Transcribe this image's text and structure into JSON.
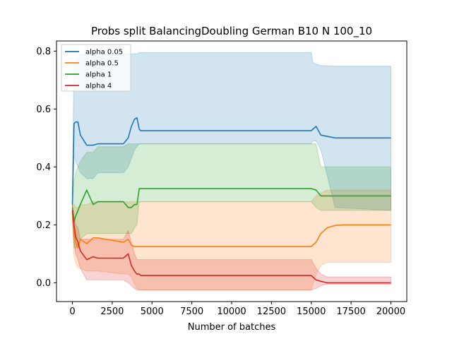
{
  "chart_data": {
    "type": "line",
    "title": "Probs split BalancingDoubling German B10 N 100_10",
    "xlabel": "Number of batches",
    "ylabel": "",
    "xlim": [
      -1000,
      21000
    ],
    "ylim": [
      -0.065,
      0.835
    ],
    "xticks": [
      0,
      2500,
      5000,
      7500,
      10000,
      12500,
      15000,
      17500,
      20000
    ],
    "xtick_labels": [
      "0",
      "2500",
      "5000",
      "7500",
      "10000",
      "12500",
      "15000",
      "17500",
      "20000"
    ],
    "yticks": [
      0.0,
      0.2,
      0.4,
      0.6,
      0.8
    ],
    "ytick_labels": [
      "0.0",
      "0.2",
      "0.4",
      "0.6",
      "0.8"
    ],
    "grid": false,
    "legend_position": "top-left",
    "series": [
      {
        "name": "alpha 0.05",
        "color": "#1f77b4",
        "x": [
          0,
          100,
          200,
          350,
          500,
          900,
          1300,
          1600,
          3200,
          3500,
          3700,
          3900,
          4050,
          4200,
          4300,
          15000,
          15100,
          15300,
          15600,
          16500,
          20000
        ],
        "y": [
          0.27,
          0.55,
          0.555,
          0.555,
          0.51,
          0.475,
          0.475,
          0.48,
          0.48,
          0.5,
          0.54,
          0.565,
          0.57,
          0.53,
          0.525,
          0.525,
          0.53,
          0.54,
          0.51,
          0.5,
          0.5
        ],
        "band_upper": [
          0.3,
          0.76,
          0.76,
          0.78,
          0.79,
          0.79,
          0.79,
          0.79,
          0.79,
          0.79,
          0.79,
          0.79,
          0.79,
          0.795,
          0.795,
          0.795,
          0.76,
          0.755,
          0.75,
          0.748,
          0.748
        ],
        "band_lower": [
          0.25,
          0.44,
          0.42,
          0.4,
          0.38,
          0.36,
          0.36,
          0.38,
          0.38,
          0.4,
          0.43,
          0.46,
          0.47,
          0.48,
          0.48,
          0.48,
          0.49,
          0.49,
          0.46,
          0.26,
          0.25
        ]
      },
      {
        "name": "alpha 0.5",
        "color": "#ff7f0e",
        "x": [
          0,
          100,
          200,
          350,
          500,
          900,
          1300,
          1600,
          3200,
          3500,
          3700,
          3900,
          4050,
          4200,
          4300,
          15000,
          15300,
          15600,
          16000,
          16500,
          17000,
          20000
        ],
        "y": [
          0.25,
          0.17,
          0.14,
          0.12,
          0.15,
          0.135,
          0.155,
          0.155,
          0.14,
          0.15,
          0.13,
          0.125,
          0.125,
          0.125,
          0.125,
          0.125,
          0.14,
          0.17,
          0.19,
          0.198,
          0.2,
          0.2
        ],
        "band_upper": [
          0.27,
          0.27,
          0.26,
          0.26,
          0.27,
          0.27,
          0.28,
          0.28,
          0.28,
          0.28,
          0.28,
          0.28,
          0.28,
          0.28,
          0.28,
          0.28,
          0.3,
          0.31,
          0.32,
          0.32,
          0.32,
          0.32
        ],
        "band_lower": [
          0.22,
          0.09,
          0.07,
          0.05,
          0.05,
          0.04,
          0.04,
          0.04,
          0.03,
          0.03,
          0.02,
          -0.005,
          -0.02,
          -0.025,
          -0.025,
          -0.025,
          0.03,
          0.06,
          0.07,
          0.07,
          0.07,
          0.07
        ]
      },
      {
        "name": "alpha 1",
        "color": "#2ca02c",
        "x": [
          0,
          100,
          200,
          350,
          500,
          900,
          1300,
          1600,
          3200,
          3500,
          3700,
          3900,
          4050,
          4200,
          4300,
          15000,
          15300,
          15600,
          16000,
          16500,
          17000,
          20000
        ],
        "y": [
          0.26,
          0.21,
          0.23,
          0.25,
          0.27,
          0.32,
          0.27,
          0.28,
          0.28,
          0.26,
          0.26,
          0.27,
          0.27,
          0.325,
          0.325,
          0.325,
          0.32,
          0.3,
          0.3,
          0.3,
          0.3,
          0.3
        ],
        "band_upper": [
          0.28,
          0.35,
          0.38,
          0.4,
          0.42,
          0.45,
          0.45,
          0.47,
          0.47,
          0.48,
          0.48,
          0.48,
          0.48,
          0.48,
          0.48,
          0.48,
          0.48,
          0.4,
          0.4,
          0.4,
          0.4,
          0.4
        ],
        "band_lower": [
          0.23,
          0.12,
          0.12,
          0.13,
          0.15,
          0.17,
          0.17,
          0.17,
          0.17,
          0.17,
          0.17,
          0.19,
          0.2,
          0.28,
          0.28,
          0.28,
          0.26,
          0.25,
          0.25,
          0.25,
          0.25,
          0.25
        ]
      },
      {
        "name": "alpha 4",
        "color": "#d62728",
        "x": [
          0,
          100,
          200,
          350,
          500,
          900,
          1300,
          1600,
          3200,
          3500,
          3700,
          3900,
          4050,
          4200,
          4300,
          15000,
          15300,
          15600,
          16000,
          16500,
          17000,
          20000
        ],
        "y": [
          0.25,
          0.2,
          0.16,
          0.14,
          0.11,
          0.08,
          0.09,
          0.085,
          0.085,
          0.1,
          0.06,
          0.04,
          0.03,
          0.03,
          0.025,
          0.025,
          0.01,
          0.005,
          0.0,
          0.0,
          0.0,
          0.0
        ],
        "band_upper": [
          0.27,
          0.23,
          0.2,
          0.19,
          0.15,
          0.15,
          0.15,
          0.15,
          0.15,
          0.18,
          0.14,
          0.1,
          0.08,
          0.08,
          0.08,
          0.08,
          0.05,
          0.03,
          0.02,
          0.02,
          0.02,
          0.02
        ],
        "band_lower": [
          0.22,
          0.14,
          0.1,
          0.08,
          0.05,
          0.01,
          0.01,
          0.01,
          0.01,
          0.0,
          -0.01,
          -0.02,
          -0.025,
          -0.025,
          -0.025,
          -0.025,
          -0.02,
          -0.01,
          -0.005,
          -0.005,
          -0.005,
          -0.005
        ]
      }
    ]
  }
}
